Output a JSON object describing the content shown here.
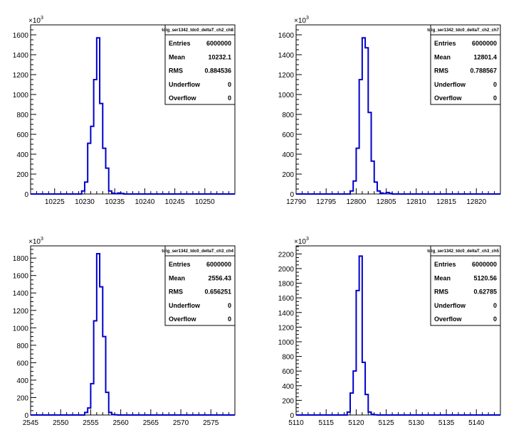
{
  "chart_data": [
    {
      "type": "bar",
      "title": "tdig_ser1342_tdc0_deltaT_ch2_ch8",
      "xlim": [
        10221,
        10255
      ],
      "ylim": [
        0,
        1700
      ],
      "y_exponent_label": "×10",
      "y_exponent_power": "3",
      "x_ticks": [
        10225,
        10230,
        10235,
        10240,
        10245,
        10250
      ],
      "x_tick_labels": [
        "10225",
        "10230",
        "10235",
        "10240",
        "10245",
        "10250"
      ],
      "y_ticks": [
        0,
        200,
        400,
        600,
        800,
        1000,
        1200,
        1400,
        1600
      ],
      "y_tick_labels": [
        "0",
        "200",
        "400",
        "600",
        "800",
        "1000",
        "1200",
        "1400",
        "1600"
      ],
      "bin_edges": [
        10229.5,
        10230.0,
        10230.5,
        10231.0,
        10231.5,
        10232.0,
        10232.5,
        10233.0,
        10233.5,
        10234.0,
        10234.5,
        10235.0,
        10235.5,
        10236.0,
        10236.5
      ],
      "values": [
        30,
        120,
        510,
        680,
        1150,
        1570,
        910,
        460,
        260,
        30,
        8,
        3,
        10,
        5
      ],
      "stats": [
        {
          "label": "Entries",
          "value": "6000000"
        },
        {
          "label": "Mean",
          "value": "10232.1"
        },
        {
          "label": "RMS",
          "value": "0.884536"
        },
        {
          "label": "Underflow",
          "value": "0"
        },
        {
          "label": "Overflow",
          "value": "0"
        }
      ]
    },
    {
      "type": "bar",
      "title": "tdig_ser1342_tdc0_deltaT_ch2_ch7",
      "xlim": [
        12790,
        12824
      ],
      "ylim": [
        0,
        1700
      ],
      "y_exponent_label": "×10",
      "y_exponent_power": "3",
      "x_ticks": [
        12790,
        12795,
        12800,
        12805,
        12810,
        12815,
        12820
      ],
      "x_tick_labels": [
        "12790",
        "12795",
        "12800",
        "12805",
        "12810",
        "12815",
        "12820"
      ],
      "y_ticks": [
        0,
        200,
        400,
        600,
        800,
        1000,
        1200,
        1400,
        1600
      ],
      "y_tick_labels": [
        "0",
        "200",
        "400",
        "600",
        "800",
        "1000",
        "1200",
        "1400",
        "1600"
      ],
      "bin_edges": [
        12799.0,
        12799.5,
        12800.0,
        12800.5,
        12801.0,
        12801.5,
        12802.0,
        12802.5,
        12803.0,
        12803.5,
        12804.0,
        12804.5,
        12805.0,
        12805.5,
        12806.0
      ],
      "values": [
        30,
        130,
        460,
        1150,
        1570,
        1470,
        820,
        330,
        120,
        30,
        10,
        4,
        15,
        6
      ],
      "stats": [
        {
          "label": "Entries",
          "value": "6000000"
        },
        {
          "label": "Mean",
          "value": "12801.4"
        },
        {
          "label": "RMS",
          "value": "0.788567"
        },
        {
          "label": "Underflow",
          "value": "0"
        },
        {
          "label": "Overflow",
          "value": "0"
        }
      ]
    },
    {
      "type": "bar",
      "title": "tdig_ser1342_tdc0_deltaT_ch3_ch4",
      "xlim": [
        2545,
        2579
      ],
      "ylim": [
        0,
        1940
      ],
      "y_exponent_label": "×10",
      "y_exponent_power": "3",
      "x_ticks": [
        2545,
        2550,
        2555,
        2560,
        2565,
        2570,
        2575
      ],
      "x_tick_labels": [
        "2545",
        "2550",
        "2555",
        "2560",
        "2565",
        "2570",
        "2575"
      ],
      "y_ticks": [
        0,
        200,
        400,
        600,
        800,
        1000,
        1200,
        1400,
        1600,
        1800
      ],
      "y_tick_labels": [
        "0",
        "200",
        "400",
        "600",
        "800",
        "1000",
        "1200",
        "1400",
        "1600",
        "1800"
      ],
      "bin_edges": [
        2554.0,
        2554.5,
        2555.0,
        2555.5,
        2556.0,
        2556.5,
        2557.0,
        2557.5,
        2558.0,
        2558.5,
        2559.0,
        2559.5
      ],
      "values": [
        30,
        80,
        360,
        1080,
        1850,
        1470,
        900,
        260,
        30,
        5,
        2
      ],
      "stats": [
        {
          "label": "Entries",
          "value": "6000000"
        },
        {
          "label": "Mean",
          "value": "2556.43"
        },
        {
          "label": "RMS",
          "value": "0.656251"
        },
        {
          "label": "Underflow",
          "value": "0"
        },
        {
          "label": "Overflow",
          "value": "0"
        }
      ]
    },
    {
      "type": "bar",
      "title": "tdig_ser1342_tdc0_deltaT_ch3_ch5",
      "xlim": [
        5110,
        5144
      ],
      "ylim": [
        0,
        2310
      ],
      "y_exponent_label": "×10",
      "y_exponent_power": "3",
      "x_ticks": [
        5110,
        5115,
        5120,
        5125,
        5130,
        5135,
        5140
      ],
      "x_tick_labels": [
        "5110",
        "5115",
        "5120",
        "5125",
        "5130",
        "5135",
        "5140"
      ],
      "y_ticks": [
        0,
        200,
        400,
        600,
        800,
        1000,
        1200,
        1400,
        1600,
        1800,
        2000,
        2200
      ],
      "y_tick_labels": [
        "0",
        "200",
        "400",
        "600",
        "800",
        "1000",
        "1200",
        "1400",
        "1600",
        "1800",
        "2000",
        "2200"
      ],
      "bin_edges": [
        5118.5,
        5119.0,
        5119.5,
        5120.0,
        5120.5,
        5121.0,
        5121.5,
        5122.0,
        5122.5,
        5123.0,
        5123.5
      ],
      "values": [
        40,
        300,
        600,
        1700,
        2170,
        720,
        280,
        40,
        8,
        3
      ],
      "stats": [
        {
          "label": "Entries",
          "value": "6000000"
        },
        {
          "label": "Mean",
          "value": "5120.56"
        },
        {
          "label": "RMS",
          "value": "0.62785"
        },
        {
          "label": "Underflow",
          "value": "0"
        },
        {
          "label": "Overflow",
          "value": "0"
        }
      ]
    }
  ],
  "colors": {
    "histogram_line": "#0000cc",
    "axis": "#000000",
    "background": "#ffffff"
  }
}
